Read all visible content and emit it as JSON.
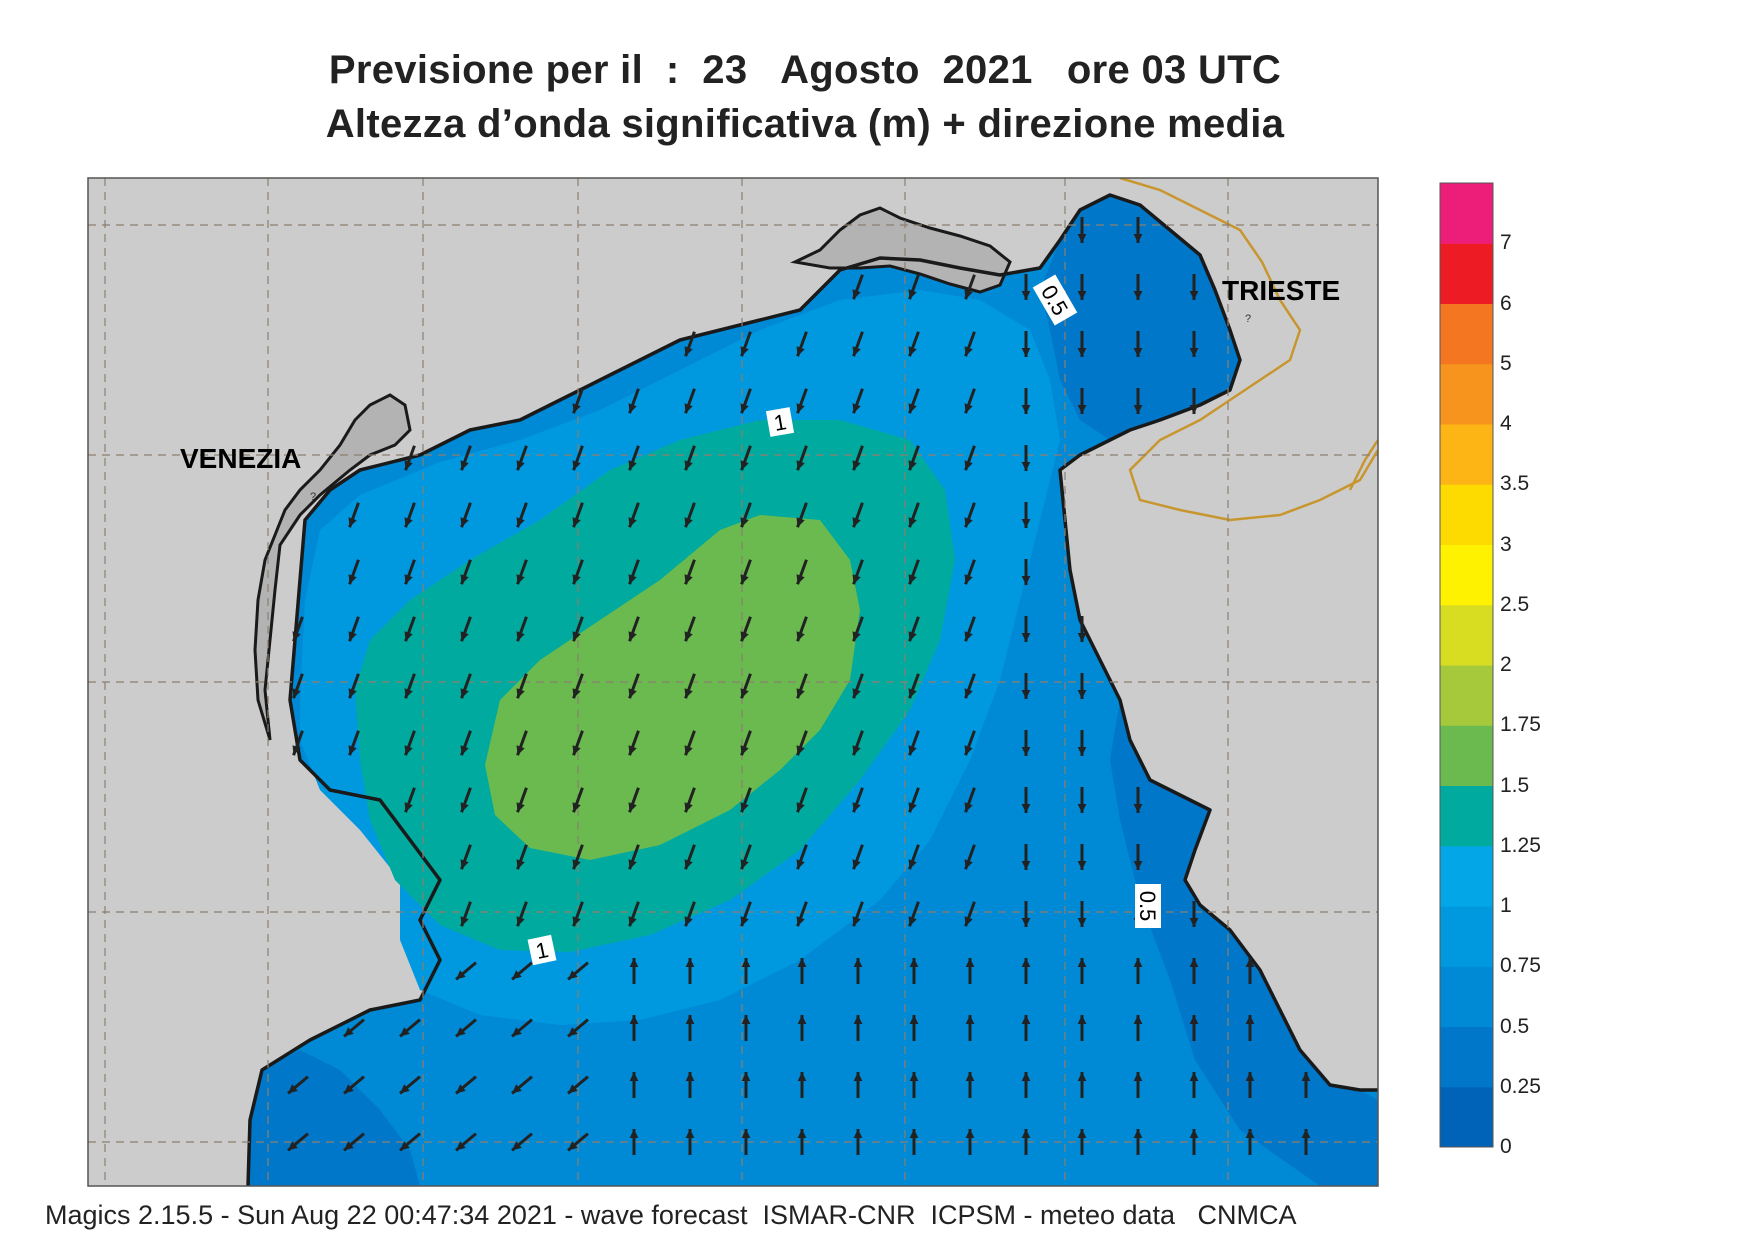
{
  "title_line1": "Previsione per il  :  23   Agosto  2021   ore 03 UTC",
  "title_line2": "Altezza d’onda significativa (m) + direzione media",
  "cities": {
    "venezia": "VENEZIA",
    "trieste": "TRIESTE"
  },
  "contour_labels": {
    "north": "0.5",
    "top_one": "1",
    "bottom_one": "1",
    "east": "0.5"
  },
  "color_scale": {
    "labels": [
      "0",
      "0.25",
      "0.5",
      "0.75",
      "1",
      "1.25",
      "1.5",
      "1.75",
      "2",
      "2.5",
      "3",
      "3.5",
      "4",
      "5",
      "6",
      "7"
    ],
    "colors": [
      "#0063b8",
      "#0077c9",
      "#008ad6",
      "#0099e0",
      "#03a6e6",
      "#00aa9e",
      "#6aba4f",
      "#a6c93b",
      "#d9dd22",
      "#fff200",
      "#fedb00",
      "#fdb515",
      "#f7941e",
      "#f47620",
      "#ed1c24",
      "#ed1e79"
    ]
  },
  "map_colors": {
    "land": "#cccccc",
    "lagoon": "#b3b3b3",
    "coast": "#1a1a1a",
    "border": "#c8962e",
    "graticule": "#8c7f6f",
    "arrow": "#222222"
  },
  "footer": "Magics 2.15.5 - Sun Aug 22 00:47:34 2021 - wave forecast  ISMAR-CNR  ICPSM - meteo data   CNMCA"
}
